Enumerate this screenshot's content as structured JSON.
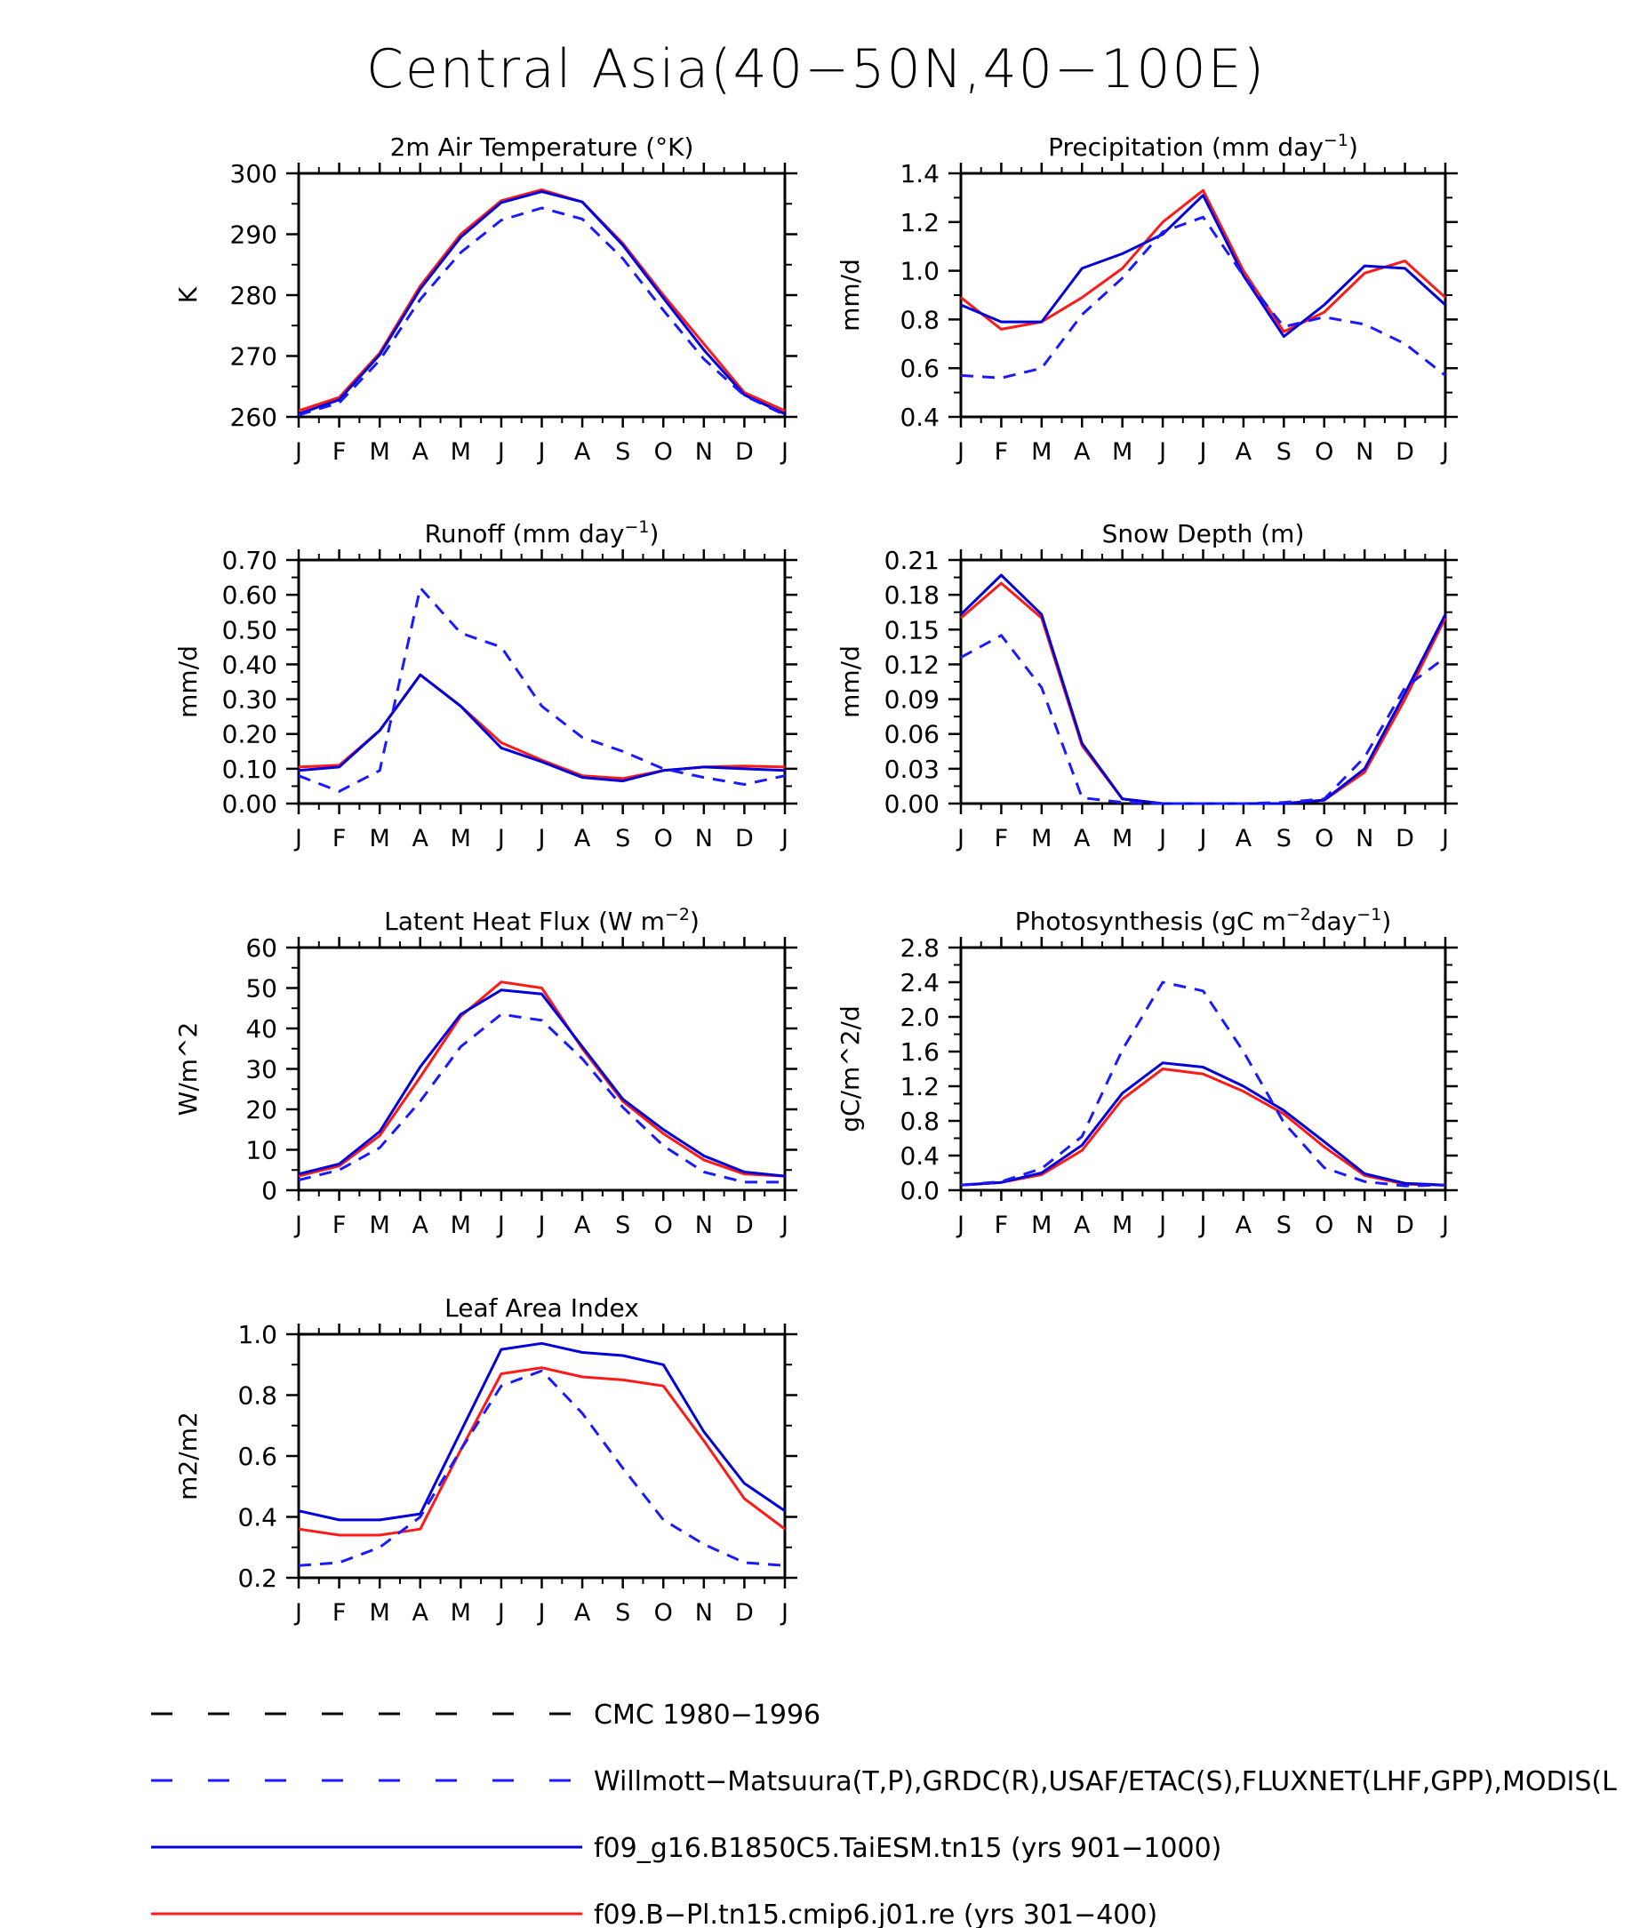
{
  "figure": {
    "title": "Central Asia(40−50N,40−100E)"
  },
  "months": [
    "J",
    "F",
    "M",
    "A",
    "M",
    "J",
    "J",
    "A",
    "S",
    "O",
    "N",
    "D",
    "J"
  ],
  "colors": {
    "obs": "#1a1aff",
    "model1": "#0000dd",
    "model2": "#ff1a1a",
    "cmc": "#000000"
  },
  "chart_data": [
    {
      "id": "tsa",
      "type": "line",
      "title": "2m Air Temperature (°K)",
      "ylabel": "K",
      "ylim": [
        260,
        300
      ],
      "yticks": [
        260,
        270,
        280,
        290,
        300
      ],
      "ytick_labels": [
        "260",
        "270",
        "280",
        "290",
        "300"
      ],
      "categories": [
        "J",
        "F",
        "M",
        "A",
        "M",
        "J",
        "J",
        "A",
        "S",
        "O",
        "N",
        "D",
        "J"
      ],
      "series": [
        {
          "key": "model2",
          "values": [
            261.0,
            263.2,
            270.5,
            281.5,
            290.0,
            295.5,
            297.3,
            295.3,
            288.5,
            280.0,
            272.0,
            264.0,
            261.0
          ]
        },
        {
          "key": "model1",
          "values": [
            260.5,
            262.8,
            270.2,
            281.0,
            289.5,
            295.2,
            297.0,
            295.3,
            288.2,
            279.5,
            271.0,
            263.6,
            260.5
          ]
        },
        {
          "key": "obs",
          "values": [
            260.3,
            262.3,
            269.3,
            279.3,
            287.0,
            292.3,
            294.3,
            292.5,
            286.0,
            277.5,
            269.5,
            263.5,
            260.3
          ]
        }
      ]
    },
    {
      "id": "prec",
      "type": "line",
      "title": "Precipitation (mm day",
      "title_sup": "−1",
      "title_end": ")",
      "ylabel": "mm/d",
      "ylim": [
        0.4,
        1.4
      ],
      "yticks": [
        0.4,
        0.6,
        0.8,
        1.0,
        1.2,
        1.4
      ],
      "ytick_labels": [
        "0.4",
        "0.6",
        "0.8",
        "1.0",
        "1.2",
        "1.4"
      ],
      "categories": [
        "J",
        "F",
        "M",
        "A",
        "M",
        "J",
        "J",
        "A",
        "S",
        "O",
        "N",
        "D",
        "J"
      ],
      "series": [
        {
          "key": "model2",
          "values": [
            0.89,
            0.76,
            0.79,
            0.89,
            1.01,
            1.2,
            1.33,
            1.0,
            0.75,
            0.83,
            0.99,
            1.04,
            0.89
          ]
        },
        {
          "key": "model1",
          "values": [
            0.86,
            0.79,
            0.79,
            1.01,
            1.07,
            1.15,
            1.31,
            0.98,
            0.73,
            0.86,
            1.02,
            1.01,
            0.86
          ]
        },
        {
          "key": "obs",
          "values": [
            0.57,
            0.56,
            0.6,
            0.82,
            0.97,
            1.16,
            1.22,
            0.98,
            0.77,
            0.81,
            0.78,
            0.7,
            0.57
          ]
        }
      ]
    },
    {
      "id": "runoff",
      "type": "line",
      "title": "Runoff (mm day",
      "title_sup": "−1",
      "title_end": ")",
      "ylabel": "mm/d",
      "ylim": [
        0,
        0.7
      ],
      "yticks": [
        0,
        0.1,
        0.2,
        0.3,
        0.4,
        0.5,
        0.6,
        0.7
      ],
      "ytick_labels": [
        "0.00",
        "0.10",
        "0.20",
        "0.30",
        "0.40",
        "0.50",
        "0.60",
        "0.70"
      ],
      "categories": [
        "J",
        "F",
        "M",
        "A",
        "M",
        "J",
        "J",
        "A",
        "S",
        "O",
        "N",
        "D",
        "J"
      ],
      "series": [
        {
          "key": "model2",
          "values": [
            0.105,
            0.11,
            0.21,
            0.37,
            0.28,
            0.175,
            0.125,
            0.08,
            0.072,
            0.095,
            0.105,
            0.108,
            0.105
          ]
        },
        {
          "key": "model1",
          "values": [
            0.095,
            0.105,
            0.21,
            0.37,
            0.28,
            0.16,
            0.12,
            0.075,
            0.065,
            0.095,
            0.105,
            0.1,
            0.095
          ]
        },
        {
          "key": "obs",
          "values": [
            0.08,
            0.035,
            0.095,
            0.62,
            0.49,
            0.45,
            0.28,
            0.19,
            0.15,
            0.1,
            0.075,
            0.055,
            0.08
          ]
        }
      ]
    },
    {
      "id": "snow",
      "type": "line",
      "title": "Snow Depth (m)",
      "ylabel": "mm/d",
      "ylim": [
        0,
        0.21
      ],
      "yticks": [
        0,
        0.03,
        0.06,
        0.09,
        0.12,
        0.15,
        0.18,
        0.21
      ],
      "ytick_labels": [
        "0.00",
        "0.03",
        "0.06",
        "0.09",
        "0.12",
        "0.15",
        "0.18",
        "0.21"
      ],
      "categories": [
        "J",
        "F",
        "M",
        "A",
        "M",
        "J",
        "J",
        "A",
        "S",
        "O",
        "N",
        "D",
        "J"
      ],
      "series": [
        {
          "key": "cmc",
          "values": [
            0,
            0,
            0,
            0,
            0,
            0,
            0,
            0,
            0,
            0,
            0,
            0,
            0
          ]
        },
        {
          "key": "model2",
          "values": [
            0.16,
            0.19,
            0.16,
            0.05,
            0.004,
            0.0,
            0.0,
            0.0,
            0.0,
            0.003,
            0.027,
            0.09,
            0.16
          ]
        },
        {
          "key": "model1",
          "values": [
            0.163,
            0.197,
            0.163,
            0.052,
            0.004,
            0.0,
            0.0,
            0.0,
            0.0,
            0.003,
            0.03,
            0.095,
            0.163
          ]
        },
        {
          "key": "obs",
          "values": [
            0.126,
            0.145,
            0.1,
            0.005,
            0.001,
            0.0,
            0.0,
            0.0,
            0.001,
            0.004,
            0.04,
            0.1,
            0.126
          ]
        }
      ]
    },
    {
      "id": "lhf",
      "type": "line",
      "title": "Latent Heat Flux (W m",
      "title_sup": "−2",
      "title_end": ")",
      "ylabel": "W/m^2",
      "ylim": [
        0,
        60
      ],
      "yticks": [
        0,
        10,
        20,
        30,
        40,
        50,
        60
      ],
      "ytick_labels": [
        "0",
        "10",
        "20",
        "30",
        "40",
        "50",
        "60"
      ],
      "categories": [
        "J",
        "F",
        "M",
        "A",
        "M",
        "J",
        "J",
        "A",
        "S",
        "O",
        "N",
        "D",
        "J"
      ],
      "series": [
        {
          "key": "model2",
          "values": [
            3.5,
            6.0,
            13.5,
            28.0,
            43.0,
            51.5,
            50.0,
            35.0,
            22.0,
            14.0,
            7.5,
            4.0,
            3.5
          ]
        },
        {
          "key": "model1",
          "values": [
            4.0,
            6.5,
            14.5,
            30.5,
            43.5,
            49.5,
            48.5,
            35.5,
            22.5,
            15.0,
            8.5,
            4.5,
            3.5
          ]
        },
        {
          "key": "obs",
          "values": [
            2.5,
            5.0,
            10.5,
            22.0,
            35.5,
            43.5,
            42.0,
            32.5,
            20.5,
            11.0,
            4.5,
            2.0,
            2.0
          ]
        }
      ]
    },
    {
      "id": "gpp",
      "type": "line",
      "title": "Photosynthesis (gC m",
      "title_sup": "−2",
      "title_mid": "day",
      "title_sup2": "−1",
      "title_end": ")",
      "ylabel": "gC/m^2/d",
      "ylim": [
        0,
        2.8
      ],
      "yticks": [
        0,
        0.4,
        0.8,
        1.2,
        1.6,
        2.0,
        2.4,
        2.8
      ],
      "ytick_labels": [
        "0.0",
        "0.4",
        "0.8",
        "1.2",
        "1.6",
        "2.0",
        "2.4",
        "2.8"
      ],
      "categories": [
        "J",
        "F",
        "M",
        "A",
        "M",
        "J",
        "J",
        "A",
        "S",
        "O",
        "N",
        "D",
        "J"
      ],
      "series": [
        {
          "key": "model2",
          "values": [
            0.06,
            0.09,
            0.18,
            0.46,
            1.05,
            1.4,
            1.34,
            1.14,
            0.88,
            0.5,
            0.17,
            0.07,
            0.06
          ]
        },
        {
          "key": "model1",
          "values": [
            0.06,
            0.09,
            0.2,
            0.52,
            1.12,
            1.47,
            1.42,
            1.2,
            0.92,
            0.56,
            0.19,
            0.08,
            0.06
          ]
        },
        {
          "key": "obs",
          "values": [
            0.06,
            0.1,
            0.25,
            0.62,
            1.62,
            2.4,
            2.3,
            1.6,
            0.78,
            0.26,
            0.1,
            0.05,
            0.06
          ]
        }
      ]
    },
    {
      "id": "lai",
      "type": "line",
      "title": "Leaf Area Index",
      "ylabel": "m2/m2",
      "ylim": [
        0.2,
        1.0
      ],
      "yticks": [
        0.2,
        0.4,
        0.6,
        0.8,
        1.0
      ],
      "ytick_labels": [
        "0.2",
        "0.4",
        "0.6",
        "0.8",
        "1.0"
      ],
      "categories": [
        "J",
        "F",
        "M",
        "A",
        "M",
        "J",
        "J",
        "A",
        "S",
        "O",
        "N",
        "D",
        "J"
      ],
      "series": [
        {
          "key": "model2",
          "values": [
            0.36,
            0.34,
            0.34,
            0.36,
            0.62,
            0.87,
            0.89,
            0.86,
            0.85,
            0.83,
            0.65,
            0.46,
            0.36
          ]
        },
        {
          "key": "model1",
          "values": [
            0.42,
            0.39,
            0.39,
            0.41,
            0.68,
            0.95,
            0.97,
            0.94,
            0.93,
            0.9,
            0.68,
            0.51,
            0.42
          ]
        },
        {
          "key": "obs",
          "values": [
            0.24,
            0.25,
            0.3,
            0.4,
            0.62,
            0.83,
            0.88,
            0.74,
            0.56,
            0.39,
            0.31,
            0.25,
            0.24
          ]
        }
      ]
    }
  ],
  "legend": [
    {
      "key": "cmc",
      "label": "CMC 1980−1996",
      "dash": "long"
    },
    {
      "key": "obs",
      "label": "Willmott−Matsuura(T,P),GRDC(R),USAF/ETAC(S),FLUXNET(LHF,GPP),MODIS(L",
      "dash": "long"
    },
    {
      "key": "model1",
      "label": "f09_g16.B1850C5.TaiESM.tn15 (yrs 901−1000)",
      "dash": "solid"
    },
    {
      "key": "model2",
      "label": "f09.B−Pl.tn15.cmip6.j01.re (yrs 301−400)",
      "dash": "solid"
    }
  ]
}
